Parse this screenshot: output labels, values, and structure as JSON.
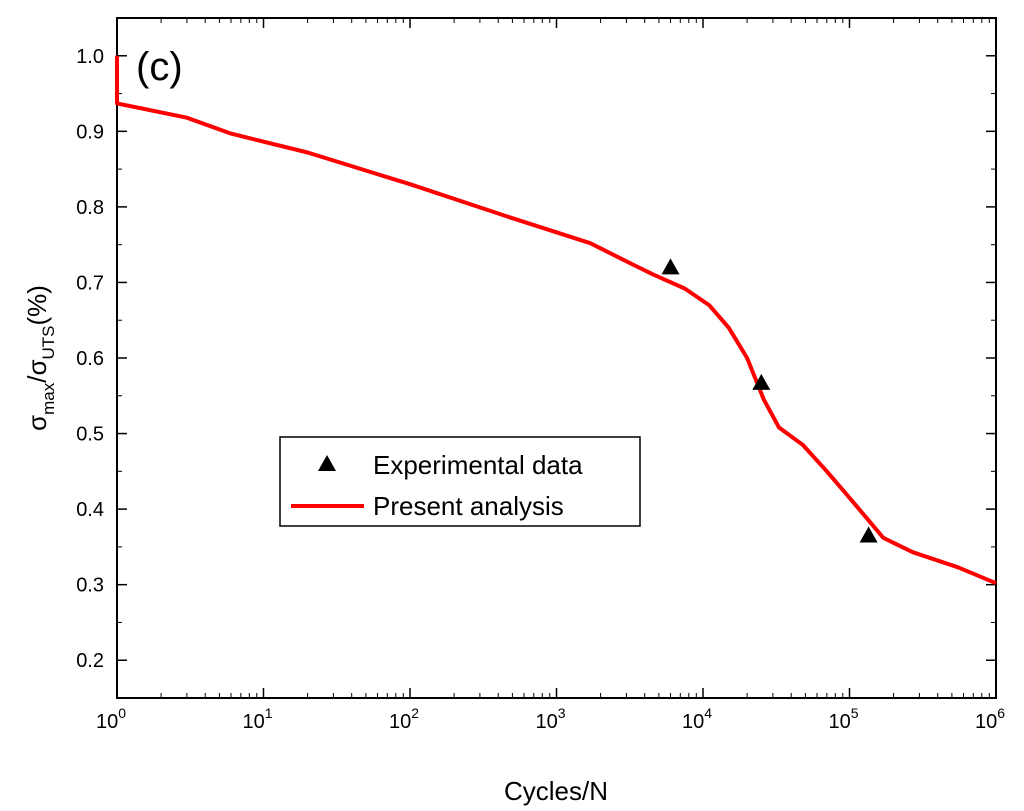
{
  "chart_data": {
    "type": "line",
    "title": "",
    "panel_label": "(c)",
    "xlabel": "Cycles/N",
    "ylabel": {
      "sigma": "σ",
      "max_sub": "max",
      "slash": "/",
      "uts_sub": "UTS",
      "suffix": "(%)"
    },
    "xscale": "log",
    "xlim_exponents": [
      0,
      6
    ],
    "ylim": [
      0.15,
      1.05
    ],
    "x_ticks": [
      {
        "base": "10",
        "exp": "0",
        "value": 1
      },
      {
        "base": "10",
        "exp": "1",
        "value": 10
      },
      {
        "base": "10",
        "exp": "2",
        "value": 100
      },
      {
        "base": "10",
        "exp": "3",
        "value": 1000
      },
      {
        "base": "10",
        "exp": "4",
        "value": 10000
      },
      {
        "base": "10",
        "exp": "5",
        "value": 100000
      },
      {
        "base": "10",
        "exp": "6",
        "value": 1000000
      }
    ],
    "y_ticks": [
      "0.2",
      "0.3",
      "0.4",
      "0.5",
      "0.6",
      "0.7",
      "0.8",
      "0.9",
      "1.0"
    ],
    "grid": false,
    "legend": {
      "position": "center-left",
      "entries": [
        "Experimental data",
        "Present analysis"
      ]
    },
    "series": [
      {
        "name": "Experimental data",
        "kind": "scatter",
        "marker": "triangle",
        "color": "#000000",
        "points": [
          {
            "x": 6000,
            "y": 0.72
          },
          {
            "x": 25000,
            "y": 0.567
          },
          {
            "x": 135000,
            "y": 0.365
          }
        ]
      },
      {
        "name": "Present analysis",
        "kind": "line",
        "color": "#ff0000",
        "points": [
          {
            "x": 1,
            "y": 1.0
          },
          {
            "x": 1,
            "y": 0.937
          },
          {
            "x": 3,
            "y": 0.918
          },
          {
            "x": 6,
            "y": 0.897
          },
          {
            "x": 20,
            "y": 0.872
          },
          {
            "x": 100,
            "y": 0.83
          },
          {
            "x": 500,
            "y": 0.785
          },
          {
            "x": 1700,
            "y": 0.752
          },
          {
            "x": 3000,
            "y": 0.728
          },
          {
            "x": 4500,
            "y": 0.711
          },
          {
            "x": 7500,
            "y": 0.692
          },
          {
            "x": 11000,
            "y": 0.67
          },
          {
            "x": 15000,
            "y": 0.64
          },
          {
            "x": 20000,
            "y": 0.6
          },
          {
            "x": 26000,
            "y": 0.545
          },
          {
            "x": 33000,
            "y": 0.508
          },
          {
            "x": 48000,
            "y": 0.485
          },
          {
            "x": 70000,
            "y": 0.45
          },
          {
            "x": 100000,
            "y": 0.415
          },
          {
            "x": 170000,
            "y": 0.362
          },
          {
            "x": 270000,
            "y": 0.343
          },
          {
            "x": 550000,
            "y": 0.323
          },
          {
            "x": 1000000,
            "y": 0.302
          }
        ]
      }
    ]
  }
}
